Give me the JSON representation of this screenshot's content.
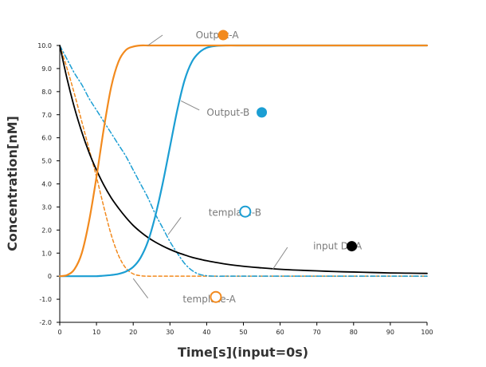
{
  "chart_data": {
    "type": "line",
    "xlabel": "Time[s](input=0s)",
    "ylabel": "Concentration[nM]",
    "xlim": [
      0,
      100
    ],
    "ylim": [
      -2,
      10
    ],
    "x_ticks": [
      "0",
      "10",
      "20",
      "30",
      "40",
      "50",
      "60",
      "70",
      "80",
      "90",
      "100"
    ],
    "y_ticks": [
      "-2.0",
      "-1.0",
      "0",
      "1.0",
      "2.0",
      "3.0",
      "4.0",
      "5.0",
      "6.0",
      "7.0",
      "8.0",
      "9.0",
      "10.0"
    ],
    "grid": false,
    "x": [
      0,
      2,
      4,
      6,
      8,
      10,
      12,
      14,
      16,
      18,
      20,
      22,
      24,
      26,
      28,
      30,
      32,
      34,
      36,
      38,
      40,
      42,
      45,
      50,
      55,
      60,
      65,
      70,
      75,
      80,
      85,
      90,
      95,
      100
    ],
    "series": [
      {
        "name": "Output-A",
        "color": "#f28a1e",
        "style": "solid",
        "marker": "filled",
        "values": [
          0,
          0.05,
          0.3,
          1.0,
          2.4,
          4.3,
          6.4,
          8.2,
          9.3,
          9.8,
          9.95,
          10,
          10,
          10,
          10,
          10,
          10,
          10,
          10,
          10,
          10,
          10,
          10,
          10,
          10,
          10,
          10,
          10,
          10,
          10,
          10,
          10,
          10,
          10
        ]
      },
      {
        "name": "Output-B",
        "color": "#1b9ed3",
        "style": "solid",
        "marker": "filled",
        "values": [
          0,
          0,
          0,
          0,
          0,
          0,
          0.02,
          0.05,
          0.1,
          0.2,
          0.4,
          0.8,
          1.5,
          2.6,
          4.0,
          5.6,
          7.2,
          8.5,
          9.3,
          9.7,
          9.9,
          9.97,
          10,
          10,
          10,
          10,
          10,
          10,
          10,
          10,
          10,
          10,
          10,
          10
        ]
      },
      {
        "name": "template-A",
        "color": "#f28a1e",
        "style": "dashed",
        "marker": "open",
        "values": [
          10,
          9.0,
          7.9,
          6.7,
          5.5,
          4.3,
          3.0,
          1.8,
          0.9,
          0.35,
          0.1,
          0.02,
          0,
          0,
          0,
          0,
          0,
          0,
          0,
          0,
          0,
          0,
          0,
          0,
          0,
          0,
          0,
          0,
          0,
          0,
          0,
          0,
          0,
          0
        ]
      },
      {
        "name": "template-B",
        "color": "#1b9ed3",
        "style": "dashdot",
        "marker": "open",
        "values": [
          10,
          9.4,
          8.8,
          8.3,
          7.7,
          7.2,
          6.7,
          6.2,
          5.7,
          5.2,
          4.6,
          4.0,
          3.4,
          2.7,
          2.1,
          1.5,
          1.0,
          0.55,
          0.25,
          0.08,
          0.02,
          0,
          0,
          0,
          0,
          0,
          0,
          0,
          0,
          0,
          0,
          0,
          0,
          0
        ]
      },
      {
        "name": "input DNA",
        "color": "#000000",
        "style": "solid",
        "marker": "filled",
        "values": [
          10,
          8.55,
          7.3,
          6.25,
          5.35,
          4.6,
          3.95,
          3.4,
          2.95,
          2.55,
          2.2,
          1.92,
          1.68,
          1.48,
          1.31,
          1.16,
          1.03,
          0.92,
          0.82,
          0.74,
          0.67,
          0.61,
          0.53,
          0.43,
          0.36,
          0.3,
          0.26,
          0.23,
          0.2,
          0.18,
          0.16,
          0.14,
          0.13,
          0.12
        ]
      }
    ]
  }
}
